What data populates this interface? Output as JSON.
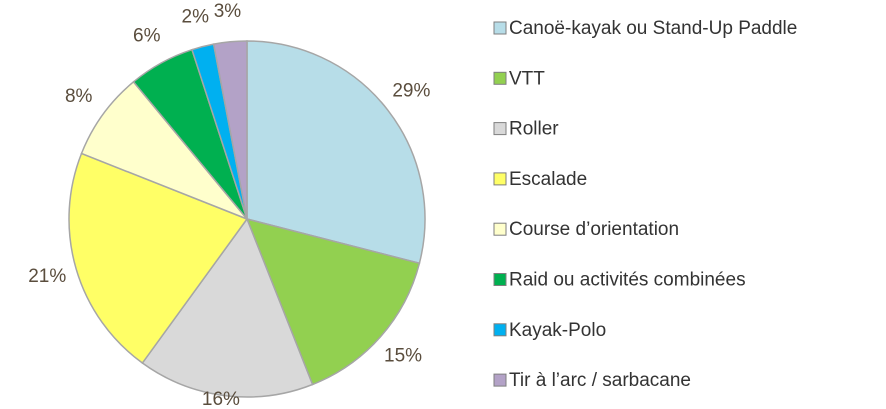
{
  "chart_data": {
    "type": "pie",
    "categories": [
      "Canoë-kayak ou Stand-Up Paddle",
      "VTT",
      "Roller",
      "Escalade",
      "Course d’orientation",
      "Raid ou activités combinées",
      "Kayak-Polo",
      "Tir à l’arc / sarbacane"
    ],
    "values": [
      29,
      15,
      16,
      21,
      8,
      6,
      2,
      3
    ],
    "value_labels": [
      "29%",
      "15%",
      "16%",
      "21%",
      "8%",
      "6%",
      "2%",
      "3%"
    ],
    "colors": [
      "#b7dde8",
      "#92d050",
      "#d9d9d9",
      "#ffff66",
      "#ffffcc",
      "#00b050",
      "#00b0f0",
      "#b3a2c7"
    ],
    "legend": "right"
  }
}
